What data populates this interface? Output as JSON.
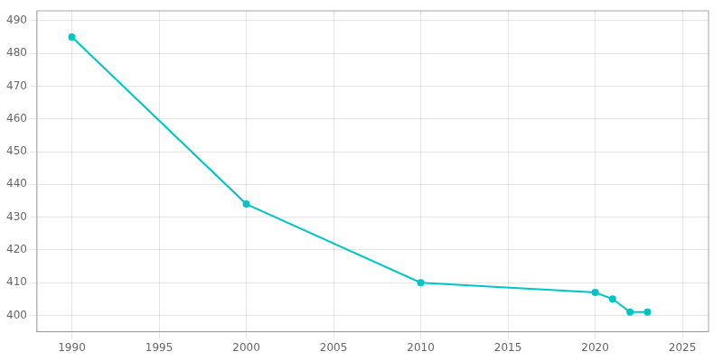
{
  "chart_data": {
    "type": "line",
    "x": [
      1990,
      2000,
      2010,
      2020,
      2021,
      2022,
      2023
    ],
    "values": [
      485,
      434,
      410,
      407,
      405,
      401,
      401
    ],
    "color": "#00C5C8",
    "marker": "circle",
    "line_style": "solid",
    "xlim": [
      1988,
      2026.5
    ],
    "xticks": [
      1990,
      1995,
      2000,
      2005,
      2010,
      2015,
      2020,
      2025
    ],
    "ylim": [
      395,
      493
    ],
    "yticks": [
      400,
      410,
      420,
      430,
      440,
      450,
      460,
      470,
      480,
      490
    ],
    "grid": true
  }
}
